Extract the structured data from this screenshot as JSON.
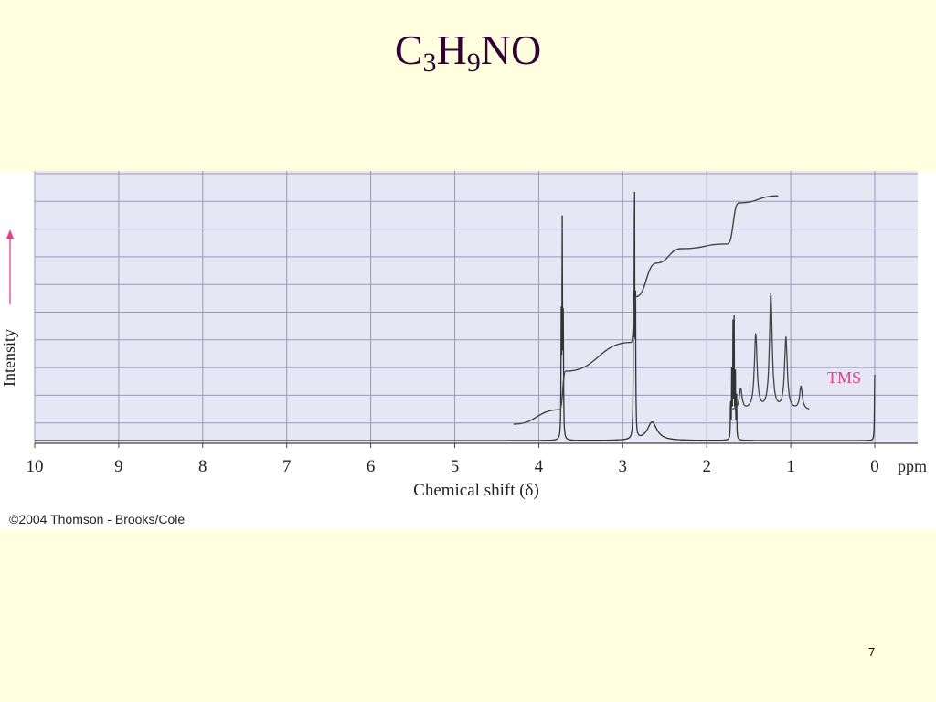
{
  "slide": {
    "title": {
      "base1": "C",
      "sub1": "3",
      "base2": "H",
      "sub2": "9",
      "base3": "NO"
    },
    "copyright": "©2004 Thomson - Brooks/Cole",
    "page_number": "7"
  },
  "chart_data": {
    "type": "line",
    "title": "",
    "xlabel": "Chemical shift (δ)",
    "x_unit": "ppm",
    "ylabel": "Intensity",
    "x_reversed": true,
    "xlim": [
      10,
      0
    ],
    "xticks": [
      "10",
      "9",
      "8",
      "7",
      "6",
      "5",
      "4",
      "3",
      "2",
      "1",
      "0"
    ],
    "grid": true,
    "colors": {
      "plot_bg": "#e6e6f5",
      "grid": "#9a9ab8",
      "trace": "#333333",
      "tms_label": "#e0408a",
      "arrow": "#e0408a"
    },
    "annotations": [
      {
        "text": "TMS",
        "x": 0
      }
    ],
    "peaks": [
      {
        "shift": 3.72,
        "relative_height": 0.85,
        "multiplicity": "triplet"
      },
      {
        "shift": 2.86,
        "relative_height": 1.0,
        "multiplicity": "triplet"
      },
      {
        "shift": 2.65,
        "relative_height": 0.07,
        "multiplicity": "broad singlet"
      },
      {
        "shift": 1.68,
        "relative_height": 0.5,
        "multiplicity": "multiplet"
      },
      {
        "shift": 0.0,
        "relative_height": 0.25,
        "multiplicity": "singlet"
      }
    ],
    "integration": [
      {
        "x": 4.3,
        "level": 0.0
      },
      {
        "x": 3.75,
        "level": 0.06
      },
      {
        "x": 3.68,
        "level": 0.22
      },
      {
        "x": 2.9,
        "level": 0.34
      },
      {
        "x": 2.84,
        "level": 0.53
      },
      {
        "x": 2.6,
        "level": 0.67
      },
      {
        "x": 2.3,
        "level": 0.73
      },
      {
        "x": 1.75,
        "level": 0.75
      },
      {
        "x": 1.62,
        "level": 0.92
      },
      {
        "x": 1.15,
        "level": 0.95
      }
    ],
    "inset_multiplet": {
      "center_shift": 1.15,
      "line_relative_heights": [
        0.18,
        0.65,
        1.0,
        0.62,
        0.2
      ]
    }
  }
}
